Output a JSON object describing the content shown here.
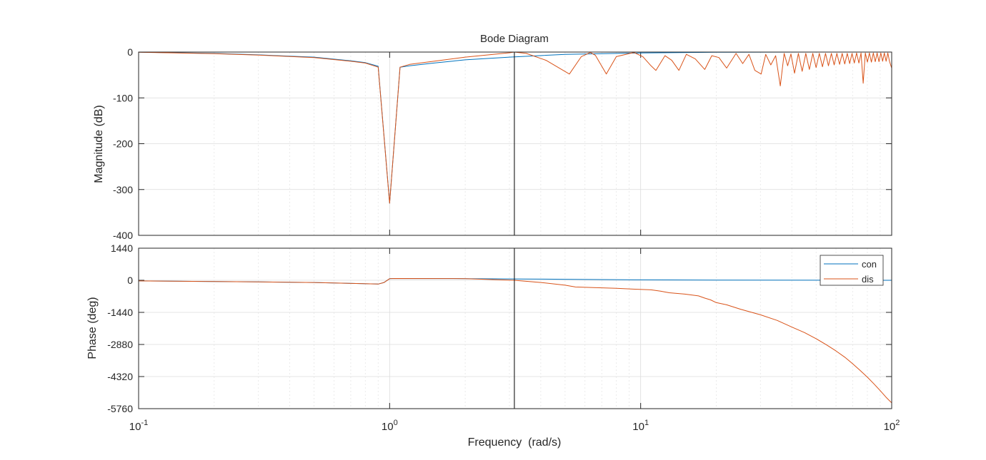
{
  "chart_data": {
    "type": "line",
    "title": "Bode Diagram",
    "xlabel": "Frequency  (rad/s)",
    "x_scale": "log",
    "xlim": [
      0.1,
      100
    ],
    "x_ticks": [
      {
        "value": 0.1,
        "base": "10",
        "exp": "-1"
      },
      {
        "value": 1,
        "base": "10",
        "exp": "0"
      },
      {
        "value": 10,
        "base": "10",
        "exp": "1"
      },
      {
        "value": 100,
        "base": "10",
        "exp": "2"
      }
    ],
    "grid": true,
    "vertical_line_x": 3.14,
    "legend": {
      "placement": "top-right of phase axes",
      "entries": [
        "con",
        "dis"
      ]
    },
    "colors": {
      "con": "#0072BD",
      "dis": "#D95319",
      "axis": "#262626",
      "grid": "#dcdcdc",
      "marker": "#000000"
    },
    "magnitude": {
      "ylabel": "Magnitude (dB)",
      "ylim": [
        -400,
        0
      ],
      "yticks": [
        0,
        -100,
        -200,
        -300,
        -400
      ],
      "ytick_labels": [
        "0",
        "-100",
        "-200",
        "-300",
        "-400"
      ],
      "series": [
        {
          "name": "con",
          "x": [
            0.1,
            0.2,
            0.3,
            0.5,
            0.7,
            0.8,
            0.9,
            1.0,
            1.1,
            1.2,
            1.5,
            2,
            3,
            5,
            10,
            20,
            50,
            100
          ],
          "y": [
            -0.1,
            -3,
            -6,
            -11,
            -19,
            -23,
            -31,
            -330,
            -33,
            -30,
            -24,
            -17,
            -11,
            -5,
            -2,
            -0.5,
            0,
            0
          ]
        },
        {
          "name": "dis",
          "x": [
            0.1,
            0.2,
            0.3,
            0.5,
            0.7,
            0.8,
            0.9,
            1.0,
            1.1,
            1.2,
            1.5,
            2,
            3.0,
            3.14,
            3.5,
            4.2,
            5.2,
            5.8,
            6.3,
            6.6,
            7.3,
            8.0,
            9.4,
            10.2,
            11.0,
            11.5,
            12.5,
            13.3,
            14.2,
            15.2,
            16.5,
            18.0,
            19.2,
            20.5,
            22.0,
            24.0,
            25.5,
            27.0,
            28.5,
            30.2,
            31.5,
            33.0,
            34.5,
            36.0,
            37.3,
            38.5,
            39.7,
            41.0,
            42.5,
            44.0,
            45.5,
            47.0,
            48.5,
            50.0,
            51.5,
            53.0,
            54.5,
            56.0,
            57.5,
            59.0,
            60.5,
            62.0,
            63.5,
            65.0,
            66.5,
            68.0,
            69.5,
            71.0,
            72.5,
            74.0,
            75.5,
            77.0,
            78.5,
            80.0,
            81.5,
            83.0,
            84.5,
            86.0,
            87.5,
            89.0,
            90.5,
            92.0,
            93.5,
            95.0,
            96.5,
            98.0,
            100
          ],
          "y": [
            -0.5,
            -3.5,
            -6.5,
            -12,
            -20,
            -24,
            -33,
            -330,
            -33,
            -27,
            -20,
            -11,
            -1.5,
            0,
            -3,
            -18,
            -48,
            -10,
            -1,
            -7,
            -48,
            -10,
            -1,
            -10,
            -30,
            -40,
            -8,
            -18,
            -40,
            -5,
            -15,
            -38,
            -8,
            -12,
            -35,
            -3,
            -25,
            -5,
            -40,
            -48,
            -5,
            -28,
            -8,
            -74,
            -3,
            -30,
            -4,
            -46,
            -3,
            -42,
            -3,
            -38,
            -3,
            -34,
            -3,
            -32,
            -3,
            -30,
            -3,
            -28,
            -3,
            -27,
            -3,
            -26,
            -3,
            -25,
            -3,
            -24,
            -2,
            -24,
            -2,
            -68,
            -2,
            -22,
            -2,
            -22,
            -2,
            -21,
            -2,
            -21,
            -2,
            -20,
            -2,
            -20,
            -2,
            -20,
            -35
          ]
        }
      ]
    },
    "phase": {
      "ylabel": "Phase (deg)",
      "ylim": [
        -5760,
        1440
      ],
      "yticks": [
        1440,
        0,
        -1440,
        -2880,
        -4320,
        -5760
      ],
      "ytick_labels": [
        "1440",
        "0",
        "-1440",
        "-2880",
        "-4320",
        "-5760"
      ],
      "series": [
        {
          "name": "con",
          "x": [
            0.1,
            0.3,
            0.5,
            0.9,
            0.95,
            1.0,
            1.05,
            2,
            3,
            5,
            10,
            20,
            50,
            100
          ],
          "y": [
            -30,
            -75,
            -100,
            -170,
            -100,
            70,
            80,
            75,
            60,
            45,
            20,
            8,
            2,
            0
          ]
        },
        {
          "name": "dis",
          "x": [
            0.1,
            0.3,
            0.5,
            0.9,
            0.95,
            1.0,
            1.05,
            2,
            3.14,
            4,
            5,
            5.5,
            6.5,
            8,
            9.5,
            11,
            12,
            13,
            15,
            17,
            18,
            19,
            20,
            22,
            25,
            30,
            35,
            40,
            45,
            50,
            55,
            60,
            65,
            70,
            75,
            80,
            85,
            90,
            95,
            100
          ],
          "y": [
            -30,
            -75,
            -100,
            -170,
            -100,
            70,
            80,
            75,
            0,
            -100,
            -220,
            -300,
            -330,
            -360,
            -400,
            -430,
            -490,
            -560,
            -620,
            -700,
            -800,
            -880,
            -1000,
            -1100,
            -1300,
            -1550,
            -1800,
            -2100,
            -2350,
            -2620,
            -2900,
            -3170,
            -3450,
            -3750,
            -4050,
            -4350,
            -4650,
            -4950,
            -5250,
            -5500
          ]
        }
      ]
    }
  }
}
